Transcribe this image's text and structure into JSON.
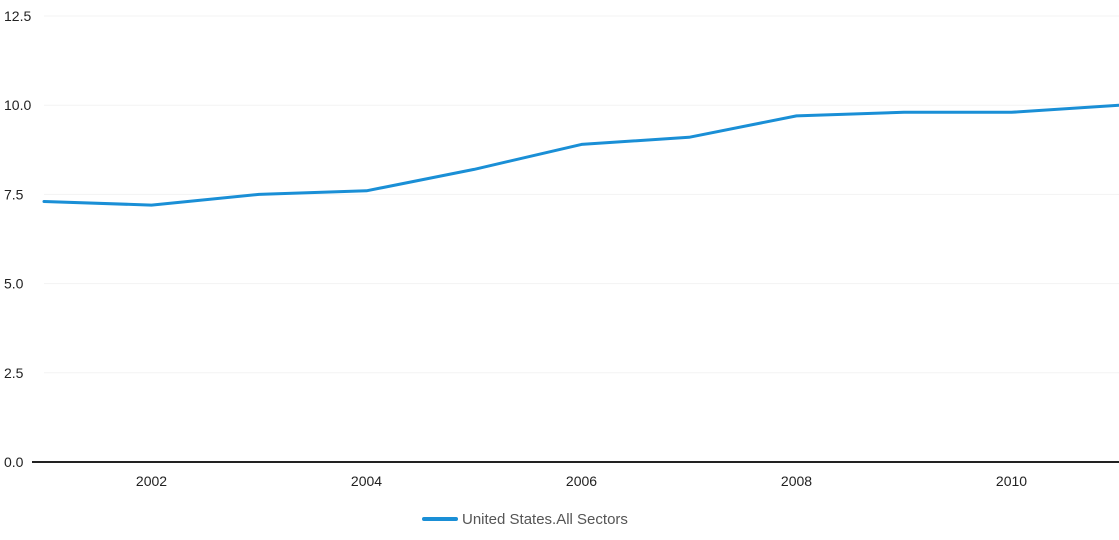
{
  "chart_data": {
    "type": "line",
    "title": "",
    "xlabel": "",
    "ylabel": "",
    "x": [
      2001,
      2002,
      2003,
      2004,
      2005,
      2006,
      2007,
      2008,
      2009,
      2010,
      2011
    ],
    "xlim": [
      2001,
      2011
    ],
    "ylim": [
      0,
      12.5
    ],
    "x_ticks": [
      2002,
      2004,
      2006,
      2008,
      2010
    ],
    "x_tick_labels": [
      "2002",
      "2004",
      "2006",
      "2008",
      "2010"
    ],
    "y_ticks": [
      0,
      2.5,
      5,
      7.5,
      10,
      12.5
    ],
    "y_tick_labels": [
      "0.0",
      "2.5",
      "5.0",
      "7.5",
      "10.0",
      "12.5"
    ],
    "grid": true,
    "legend_position": "bottom",
    "series": [
      {
        "name": "United States.All Sectors",
        "color": "#1a8fd6",
        "values": [
          7.3,
          7.2,
          7.5,
          7.6,
          8.2,
          8.9,
          9.1,
          9.7,
          9.8,
          9.8,
          10.0
        ]
      }
    ]
  }
}
